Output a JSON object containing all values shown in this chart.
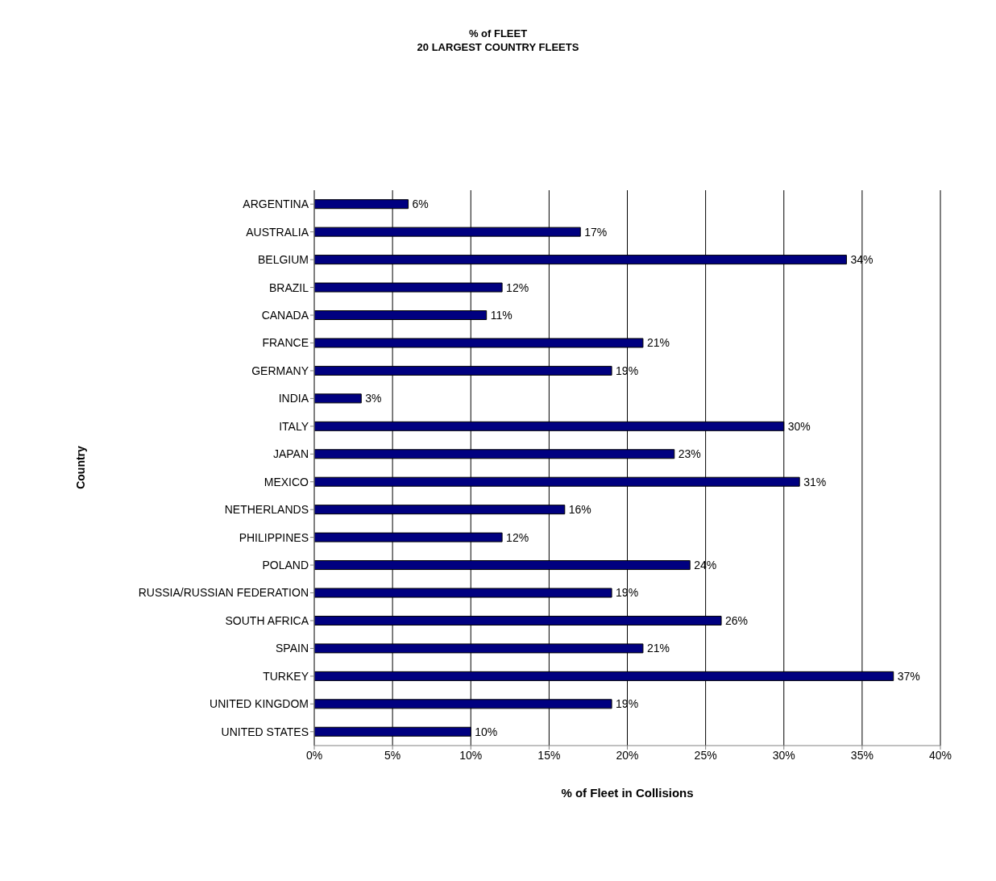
{
  "chart_data": {
    "type": "bar",
    "orientation": "horizontal",
    "title": "% of FLEET\n20 LARGEST COUNTRY FLEETS",
    "xlabel": "% of Fleet in Collisions",
    "ylabel": "Country",
    "categories": [
      "ARGENTINA",
      "AUSTRALIA",
      "BELGIUM",
      "BRAZIL",
      "CANADA",
      "FRANCE",
      "GERMANY",
      "INDIA",
      "ITALY",
      "JAPAN",
      "MEXICO",
      "NETHERLANDS",
      "PHILIPPINES",
      "POLAND",
      "RUSSIA/RUSSIAN FEDERATION",
      "SOUTH AFRICA",
      "SPAIN",
      "TURKEY",
      "UNITED KINGDOM",
      "UNITED STATES"
    ],
    "values": [
      6,
      17,
      34,
      12,
      11,
      21,
      19,
      3,
      30,
      23,
      31,
      16,
      12,
      24,
      19,
      26,
      21,
      37,
      19,
      10
    ],
    "value_labels": [
      "6%",
      "17%",
      "34%",
      "12%",
      "11%",
      "21%",
      "19%",
      "3%",
      "30%",
      "23%",
      "31%",
      "16%",
      "12%",
      "24%",
      "19%",
      "26%",
      "21%",
      "37%",
      "19%",
      "10%"
    ],
    "color": "#000080",
    "xlim": [
      0,
      40
    ],
    "xticks": [
      {
        "value": 0,
        "label": "0%"
      },
      {
        "value": 5,
        "label": "5%"
      },
      {
        "value": 10,
        "label": "10%"
      },
      {
        "value": 15,
        "label": "15%"
      },
      {
        "value": 20,
        "label": "20%"
      },
      {
        "value": 25,
        "label": "25%"
      },
      {
        "value": 30,
        "label": "30%"
      },
      {
        "value": 35,
        "label": "35%"
      },
      {
        "value": 40,
        "label": "40%"
      }
    ],
    "grid": "x",
    "legend": false
  }
}
